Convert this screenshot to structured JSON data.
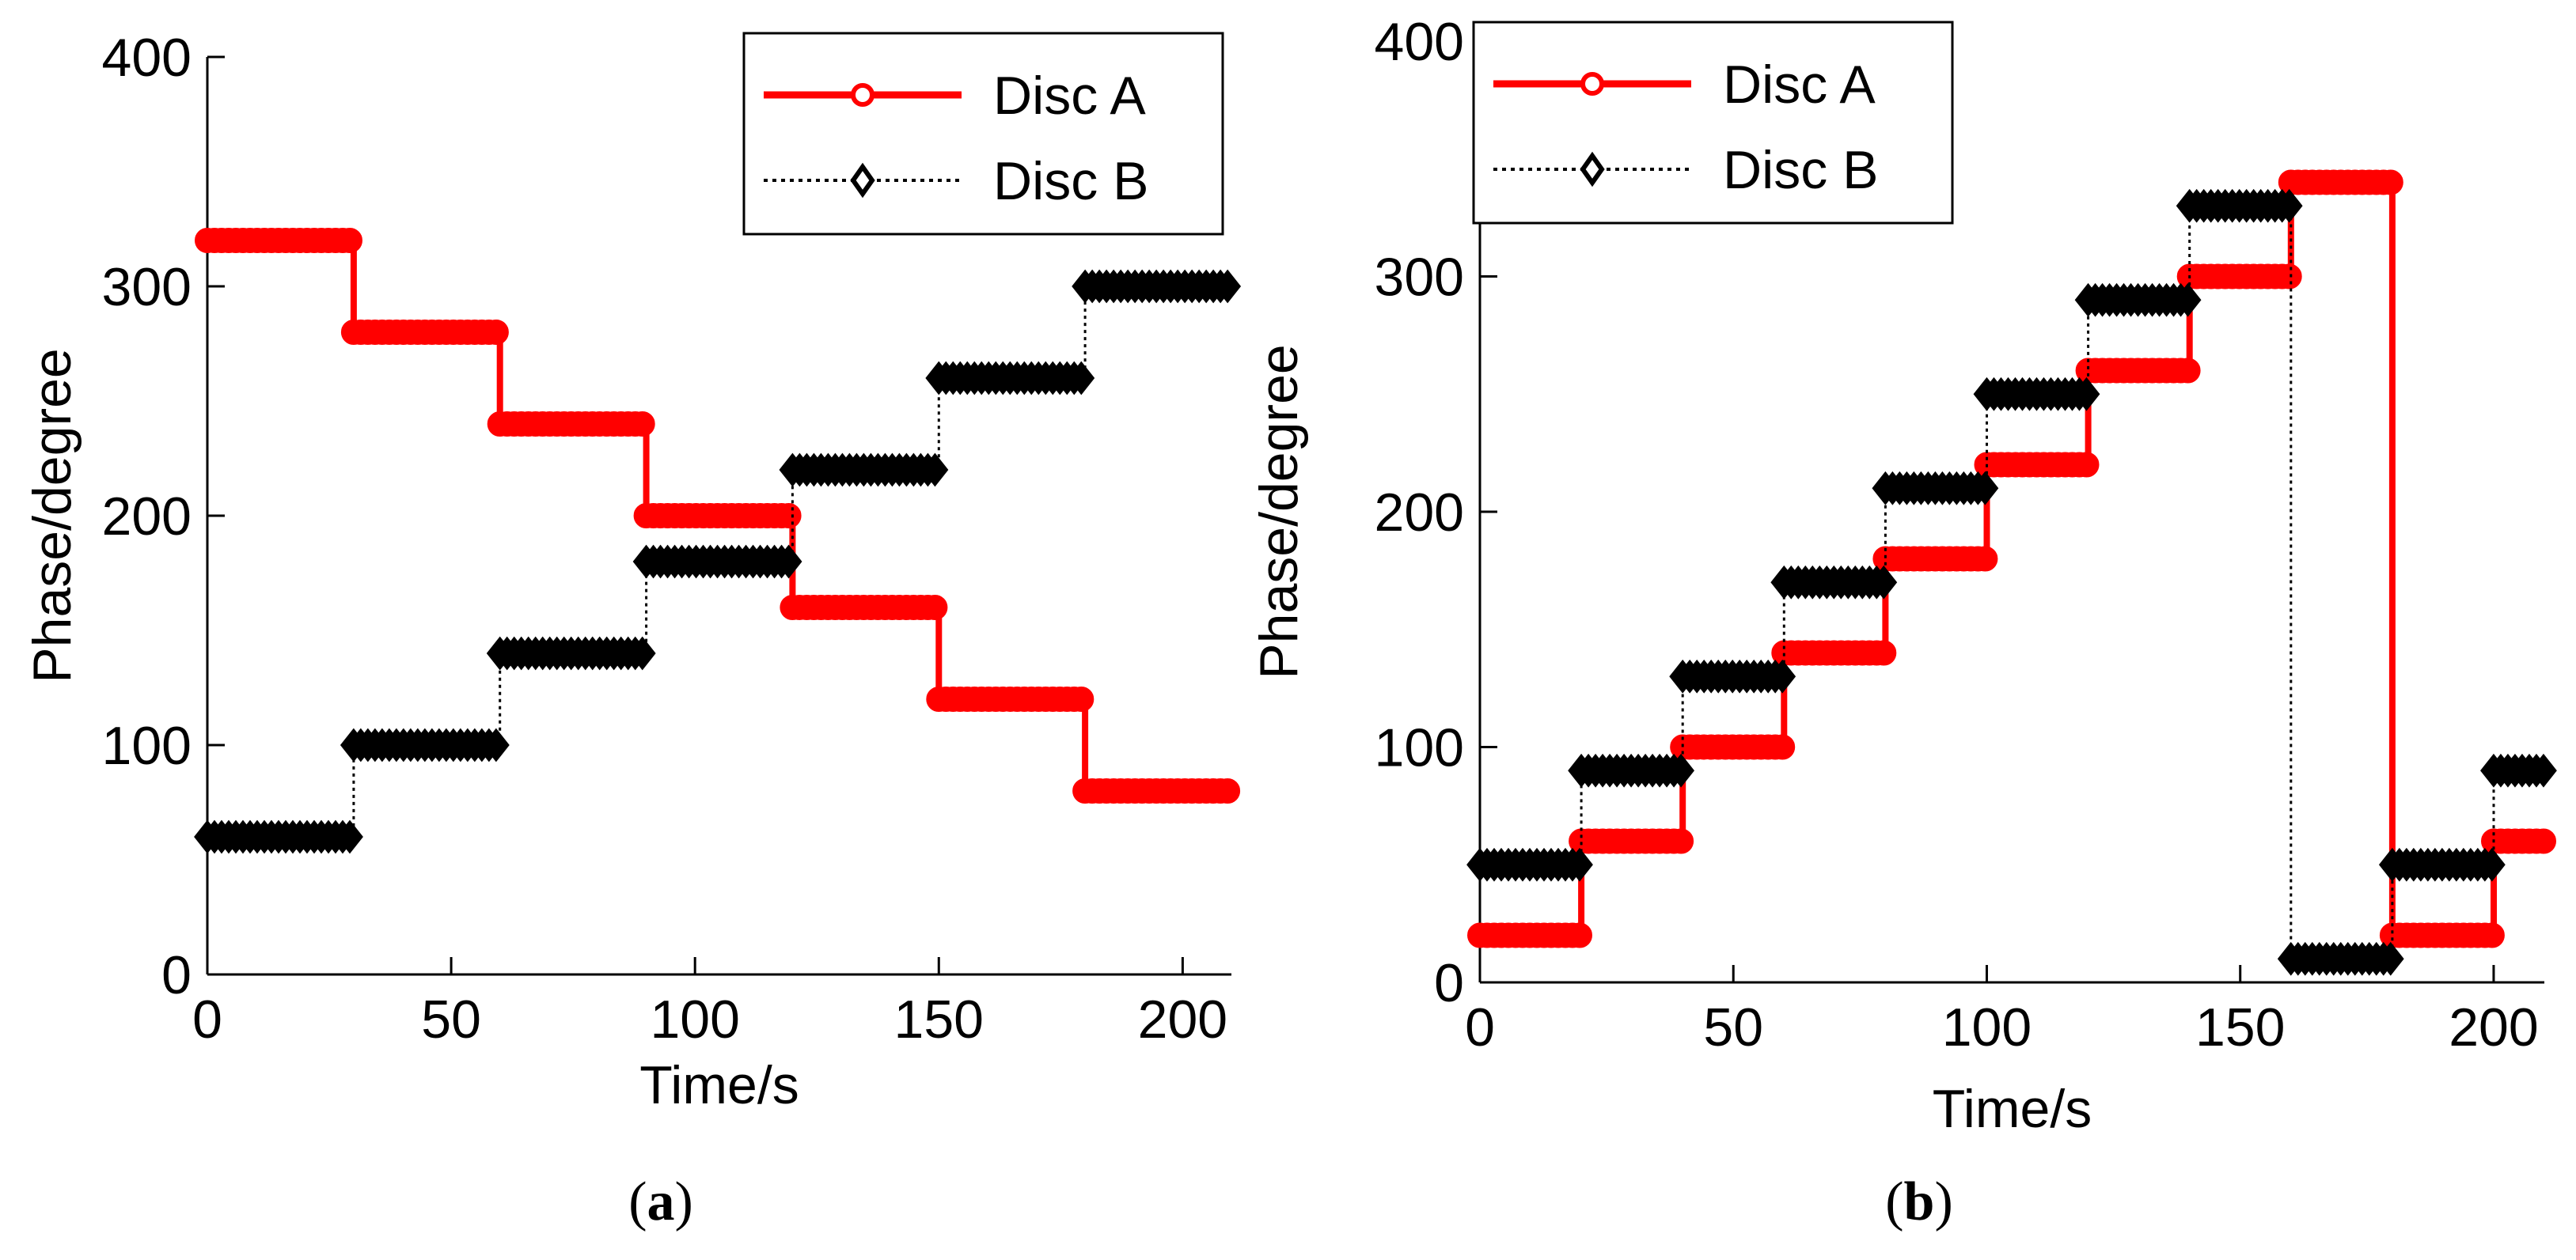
{
  "chart_data": [
    {
      "type": "line",
      "panel": "a",
      "caption_letter": "a",
      "xlabel": "Time/s",
      "ylabel": "Phase/degree",
      "xlim": [
        0,
        210
      ],
      "ylim": [
        0,
        400
      ],
      "xticks": [
        0,
        50,
        100,
        150,
        200
      ],
      "yticks": [
        0,
        100,
        200,
        300,
        400
      ],
      "legend_position": "top-right",
      "series": [
        {
          "name": "Disc A",
          "color": "#ff0000",
          "style": "solid",
          "marker": "circle",
          "x": [
            0,
            30,
            30,
            60,
            60,
            90,
            90,
            120,
            120,
            150,
            150,
            180,
            180,
            210
          ],
          "y": [
            320,
            320,
            280,
            280,
            240,
            240,
            200,
            200,
            160,
            160,
            120,
            120,
            80,
            80
          ]
        },
        {
          "name": "Disc B",
          "color": "#000000",
          "style": "dotted",
          "marker": "diamond",
          "x": [
            0,
            30,
            30,
            60,
            60,
            90,
            90,
            120,
            120,
            150,
            150,
            180,
            180,
            210
          ],
          "y": [
            60,
            60,
            100,
            100,
            140,
            140,
            180,
            180,
            220,
            220,
            260,
            260,
            300,
            300
          ]
        }
      ]
    },
    {
      "type": "line",
      "panel": "b",
      "caption_letter": "b",
      "xlabel": "Time/s",
      "ylabel": "Phase/degree",
      "xlim": [
        0,
        210
      ],
      "ylim": [
        0,
        400
      ],
      "xticks": [
        0,
        50,
        100,
        150,
        200
      ],
      "yticks": [
        0,
        100,
        200,
        300,
        400
      ],
      "legend_position": "top-left",
      "series": [
        {
          "name": "Disc A",
          "color": "#ff0000",
          "style": "solid",
          "marker": "circle",
          "x": [
            0,
            20,
            20,
            40,
            40,
            60,
            60,
            80,
            80,
            100,
            100,
            120,
            120,
            140,
            140,
            160,
            160,
            180,
            180,
            200,
            200,
            210
          ],
          "y": [
            20,
            20,
            60,
            60,
            100,
            100,
            140,
            140,
            180,
            180,
            220,
            220,
            260,
            260,
            300,
            300,
            340,
            340,
            20,
            20,
            60,
            60
          ]
        },
        {
          "name": "Disc B",
          "color": "#000000",
          "style": "dotted",
          "marker": "diamond",
          "x": [
            0,
            20,
            20,
            40,
            40,
            60,
            60,
            80,
            80,
            100,
            100,
            120,
            120,
            140,
            140,
            160,
            160,
            180,
            180,
            200,
            200,
            210
          ],
          "y": [
            50,
            50,
            90,
            90,
            130,
            130,
            170,
            170,
            210,
            210,
            250,
            250,
            290,
            290,
            330,
            330,
            10,
            10,
            50,
            50,
            90,
            90
          ]
        }
      ]
    }
  ]
}
